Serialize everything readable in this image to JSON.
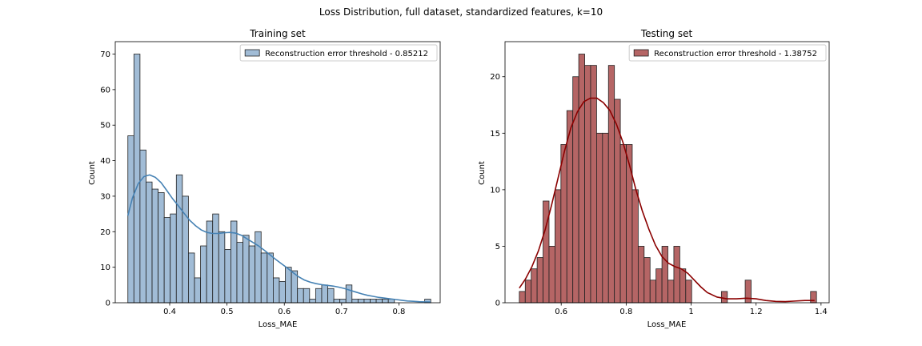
{
  "figure": {
    "suptitle": "Loss Distribution, full dataset, standardized features, k=10"
  },
  "chart_data": [
    {
      "type": "histogram",
      "title": "Training set",
      "xlabel": "Loss_MAE",
      "ylabel": "Count",
      "xlim": [
        0.305,
        0.872
      ],
      "ylim": [
        0,
        73.5
      ],
      "xticks": [
        0.4,
        0.5,
        0.6,
        0.7,
        0.8
      ],
      "yticks": [
        0,
        10,
        20,
        30,
        40,
        50,
        60,
        70
      ],
      "bin_start": 0.327,
      "bin_width": 0.01057,
      "counts": [
        47,
        70,
        43,
        34,
        32,
        31,
        24,
        25,
        36,
        30,
        14,
        7,
        16,
        23,
        25,
        20,
        15,
        23,
        17,
        19,
        16,
        20,
        14,
        14,
        7,
        6,
        10,
        9,
        4,
        4,
        1,
        4,
        5,
        4,
        1,
        1,
        5,
        1,
        1,
        1,
        1,
        1,
        1,
        1,
        0,
        0,
        0,
        0,
        0,
        1
      ],
      "kde": [
        [
          0.327,
          24.5
        ],
        [
          0.335,
          29.5
        ],
        [
          0.345,
          33.5
        ],
        [
          0.355,
          35.5
        ],
        [
          0.365,
          36.0
        ],
        [
          0.375,
          35.3
        ],
        [
          0.385,
          33.8
        ],
        [
          0.395,
          31.6
        ],
        [
          0.405,
          29.3
        ],
        [
          0.415,
          27.3
        ],
        [
          0.425,
          25.2
        ],
        [
          0.435,
          23.2
        ],
        [
          0.445,
          21.7
        ],
        [
          0.455,
          20.5
        ],
        [
          0.465,
          19.8
        ],
        [
          0.475,
          19.5
        ],
        [
          0.485,
          19.5
        ],
        [
          0.495,
          19.7
        ],
        [
          0.505,
          19.8
        ],
        [
          0.515,
          19.6
        ],
        [
          0.525,
          19.0
        ],
        [
          0.535,
          18.0
        ],
        [
          0.545,
          17.0
        ],
        [
          0.555,
          16.0
        ],
        [
          0.565,
          14.8
        ],
        [
          0.575,
          13.5
        ],
        [
          0.585,
          12.2
        ],
        [
          0.595,
          11.0
        ],
        [
          0.605,
          9.8
        ],
        [
          0.615,
          8.5
        ],
        [
          0.625,
          7.3
        ],
        [
          0.635,
          6.4
        ],
        [
          0.645,
          5.8
        ],
        [
          0.655,
          5.4
        ],
        [
          0.665,
          5.1
        ],
        [
          0.675,
          4.9
        ],
        [
          0.685,
          4.7
        ],
        [
          0.695,
          4.4
        ],
        [
          0.705,
          4.0
        ],
        [
          0.715,
          3.5
        ],
        [
          0.725,
          3.0
        ],
        [
          0.735,
          2.5
        ],
        [
          0.745,
          2.1
        ],
        [
          0.755,
          1.8
        ],
        [
          0.765,
          1.5
        ],
        [
          0.775,
          1.3
        ],
        [
          0.785,
          1.1
        ],
        [
          0.795,
          0.9
        ],
        [
          0.805,
          0.7
        ],
        [
          0.815,
          0.5
        ],
        [
          0.825,
          0.4
        ],
        [
          0.835,
          0.3
        ],
        [
          0.845,
          0.25
        ],
        [
          0.855,
          0.2
        ]
      ],
      "legend_label": "Reconstruction error threshold - 0.85212",
      "legend_position": "upper right",
      "bar_color": "#a1bcd6",
      "kde_color": "#4682b4",
      "edge_color": "#222222"
    },
    {
      "type": "histogram",
      "title": "Testing set",
      "xlabel": "Loss_MAE",
      "ylabel": "Count",
      "xlim": [
        0.427,
        1.425
      ],
      "ylim": [
        0,
        23.1
      ],
      "xticks": [
        0.6,
        0.8,
        1.0,
        1.2,
        1.4
      ],
      "yticks": [
        0,
        5,
        10,
        15,
        20
      ],
      "bin_start": 0.471,
      "bin_width": 0.0183,
      "counts": [
        1,
        2,
        3,
        4,
        9,
        5,
        10,
        14,
        17,
        20,
        22,
        21,
        21,
        15,
        15,
        21,
        18,
        14,
        14,
        10,
        5,
        4,
        2,
        3,
        5,
        2,
        5,
        3,
        2,
        0,
        0,
        0,
        0,
        0,
        1,
        0,
        0,
        0,
        2,
        0,
        0,
        0,
        0,
        0,
        0,
        0,
        0,
        0,
        0,
        1
      ],
      "kde": [
        [
          0.471,
          1.3
        ],
        [
          0.49,
          2.1
        ],
        [
          0.51,
          3.2
        ],
        [
          0.53,
          4.6
        ],
        [
          0.55,
          6.4
        ],
        [
          0.57,
          8.6
        ],
        [
          0.59,
          11.0
        ],
        [
          0.61,
          13.4
        ],
        [
          0.63,
          15.5
        ],
        [
          0.65,
          16.9
        ],
        [
          0.67,
          17.8
        ],
        [
          0.69,
          18.1
        ],
        [
          0.71,
          18.1
        ],
        [
          0.73,
          17.7
        ],
        [
          0.75,
          17.0
        ],
        [
          0.77,
          15.8
        ],
        [
          0.79,
          14.2
        ],
        [
          0.81,
          12.2
        ],
        [
          0.83,
          10.0
        ],
        [
          0.85,
          8.1
        ],
        [
          0.87,
          6.5
        ],
        [
          0.89,
          5.1
        ],
        [
          0.91,
          4.1
        ],
        [
          0.93,
          3.5
        ],
        [
          0.95,
          3.2
        ],
        [
          0.97,
          3.0
        ],
        [
          0.99,
          2.6
        ],
        [
          1.01,
          2.0
        ],
        [
          1.03,
          1.4
        ],
        [
          1.05,
          0.9
        ],
        [
          1.08,
          0.5
        ],
        [
          1.11,
          0.35
        ],
        [
          1.14,
          0.35
        ],
        [
          1.17,
          0.4
        ],
        [
          1.2,
          0.35
        ],
        [
          1.23,
          0.2
        ],
        [
          1.26,
          0.12
        ],
        [
          1.29,
          0.1
        ],
        [
          1.32,
          0.15
        ],
        [
          1.35,
          0.2
        ],
        [
          1.38,
          0.2
        ]
      ],
      "legend_label": "Reconstruction error threshold - 1.38752",
      "legend_position": "upper right",
      "bar_color": "#b56565",
      "kde_color": "#8b0000",
      "edge_color": "#222222"
    }
  ]
}
